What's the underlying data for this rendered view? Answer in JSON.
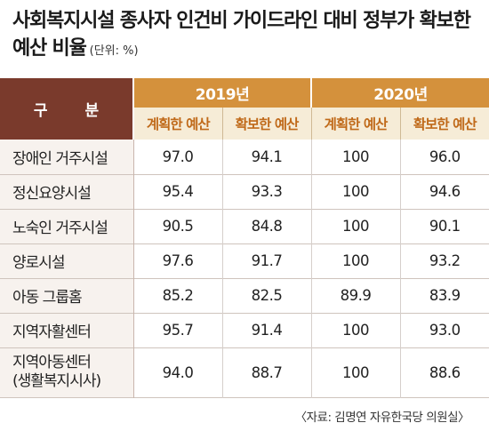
{
  "title": "사회복지시설 종사자 인건비 가이드라인 대비 정부가 확보한 예산 비율",
  "unit": "(단위: %)",
  "header": {
    "category": "구 분",
    "years": [
      "2019년",
      "2020년"
    ],
    "sub": [
      "계획한 예산",
      "확보한 예산",
      "계획한 예산",
      "확보한 예산"
    ]
  },
  "rows": [
    {
      "label": "장애인 거주시설",
      "values": [
        "97.0",
        "94.1",
        "100",
        "96.0"
      ]
    },
    {
      "label": "정신요양시설",
      "values": [
        "95.4",
        "93.3",
        "100",
        "94.6"
      ]
    },
    {
      "label": "노숙인 거주시설",
      "values": [
        "90.5",
        "84.8",
        "100",
        "90.1"
      ]
    },
    {
      "label": "양로시설",
      "values": [
        "97.6",
        "91.7",
        "100",
        "93.2"
      ]
    },
    {
      "label": "아동 그룹홈",
      "values": [
        "85.2",
        "82.5",
        "89.9",
        "83.9"
      ]
    },
    {
      "label": "지역자활센터",
      "values": [
        "95.7",
        "91.4",
        "100",
        "93.0"
      ]
    },
    {
      "label": "지역아동센터",
      "label2": "(생활복지시사)",
      "values": [
        "94.0",
        "88.7",
        "100",
        "88.6"
      ]
    }
  ],
  "source": "〈자료: 김명연 자유한국당 의원실〉",
  "colors": {
    "header_dark": "#7a3a2c",
    "header_orange": "#d4913c",
    "subheader_bg": "#f6ecd7",
    "subheader_text": "#c06a1a"
  }
}
